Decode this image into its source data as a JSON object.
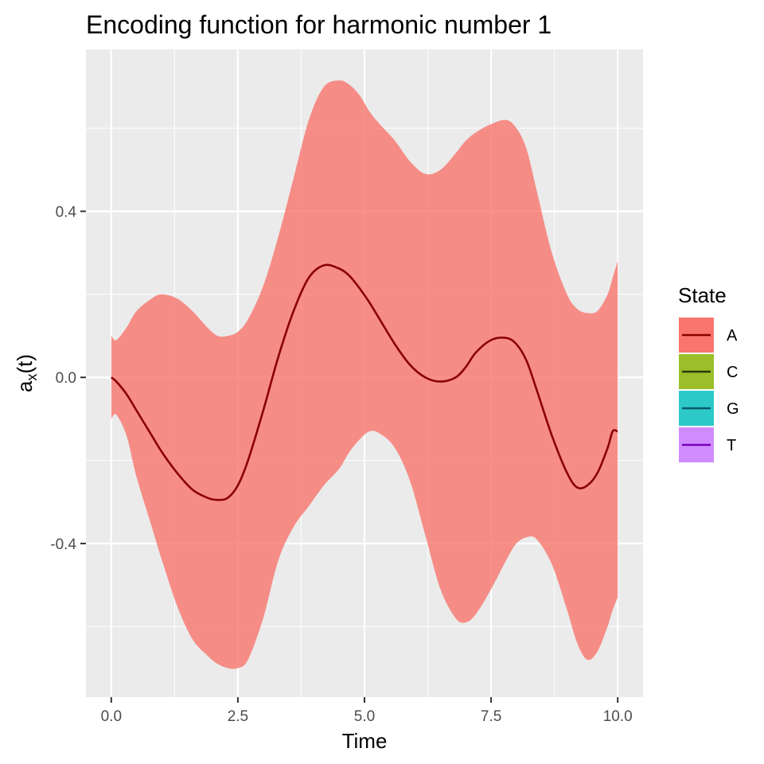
{
  "chart_data": {
    "type": "area",
    "title": "Encoding function for harmonic number 1",
    "xlabel": "Time",
    "ylabel": "a_x(t)",
    "ylabel_main": "a",
    "ylabel_sub": "x",
    "ylabel_tail": "(t)",
    "xlim": [
      -0.5,
      10.5
    ],
    "ylim": [
      -0.77,
      0.79
    ],
    "x_ticks": [
      0,
      2.5,
      5,
      7.5,
      10
    ],
    "x_tick_labels": [
      "0.0",
      "2.5",
      "5.0",
      "7.5",
      "10.0"
    ],
    "y_ticks": [
      -0.4,
      0,
      0.4
    ],
    "y_tick_labels": [
      "-0.4",
      "0.0",
      "0.4"
    ],
    "grid": true,
    "legend": {
      "title": "State",
      "position": "right",
      "entries": [
        {
          "label": "A",
          "fill": "#f8766d",
          "line": "#8b0000"
        },
        {
          "label": "C",
          "fill": "#9bbf2a",
          "line": "#2b3a0a"
        },
        {
          "label": "G",
          "fill": "#2dc9c9",
          "line": "#0d5a6a"
        },
        {
          "label": "T",
          "fill": "#d08cff",
          "line": "#7a00c0"
        }
      ]
    },
    "series": [
      {
        "name": "A",
        "fill_color": "#f8766d",
        "line_color": "#8b0000",
        "fill_opacity": 0.8,
        "x": [
          0.0,
          0.1,
          0.3,
          0.5,
          0.8,
          1.0,
          1.3,
          1.6,
          1.9,
          2.1,
          2.3,
          2.5,
          2.7,
          3.0,
          3.3,
          3.6,
          3.9,
          4.2,
          4.5,
          4.7,
          4.9,
          5.1,
          5.3,
          5.6,
          5.9,
          6.2,
          6.5,
          6.8,
          7.0,
          7.2,
          7.5,
          7.8,
          8.0,
          8.2,
          8.4,
          8.7,
          9.0,
          9.2,
          9.4,
          9.6,
          9.8,
          9.9,
          10.0
        ],
        "mean": [
          0.0,
          -0.01,
          -0.04,
          -0.08,
          -0.14,
          -0.18,
          -0.23,
          -0.27,
          -0.29,
          -0.295,
          -0.29,
          -0.26,
          -0.2,
          -0.08,
          0.05,
          0.16,
          0.24,
          0.27,
          0.262,
          0.245,
          0.215,
          0.18,
          0.14,
          0.08,
          0.03,
          0.0,
          -0.01,
          0.0,
          0.025,
          0.06,
          0.09,
          0.095,
          0.08,
          0.04,
          -0.03,
          -0.14,
          -0.23,
          -0.265,
          -0.26,
          -0.23,
          -0.17,
          -0.13,
          -0.13
        ],
        "upper": [
          0.1,
          0.09,
          0.12,
          0.16,
          0.19,
          0.2,
          0.19,
          0.16,
          0.12,
          0.1,
          0.1,
          0.11,
          0.14,
          0.22,
          0.34,
          0.48,
          0.62,
          0.7,
          0.715,
          0.705,
          0.68,
          0.64,
          0.61,
          0.57,
          0.52,
          0.49,
          0.5,
          0.54,
          0.57,
          0.59,
          0.61,
          0.62,
          0.6,
          0.55,
          0.45,
          0.3,
          0.2,
          0.165,
          0.155,
          0.16,
          0.2,
          0.24,
          0.28
        ],
        "lower": [
          -0.1,
          -0.09,
          -0.14,
          -0.24,
          -0.36,
          -0.44,
          -0.55,
          -0.63,
          -0.67,
          -0.69,
          -0.7,
          -0.7,
          -0.68,
          -0.58,
          -0.44,
          -0.36,
          -0.31,
          -0.26,
          -0.22,
          -0.18,
          -0.15,
          -0.13,
          -0.135,
          -0.17,
          -0.25,
          -0.38,
          -0.51,
          -0.58,
          -0.59,
          -0.57,
          -0.51,
          -0.44,
          -0.4,
          -0.385,
          -0.39,
          -0.45,
          -0.56,
          -0.64,
          -0.68,
          -0.66,
          -0.6,
          -0.56,
          -0.53
        ]
      }
    ]
  }
}
